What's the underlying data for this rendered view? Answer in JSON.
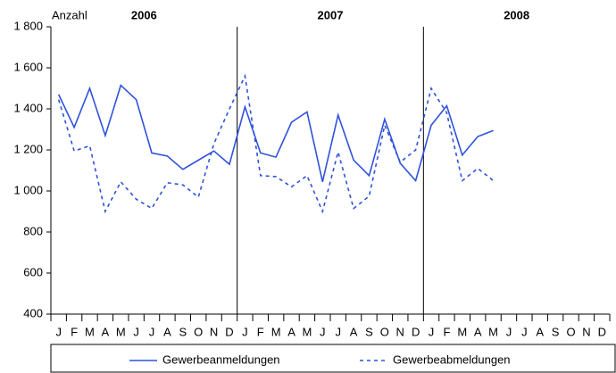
{
  "chart_data": {
    "type": "line",
    "y_label": "Anzahl",
    "annotations": [
      "2006",
      "2007",
      "2008"
    ],
    "categories": [
      "J",
      "F",
      "M",
      "A",
      "M",
      "J",
      "J",
      "A",
      "S",
      "O",
      "N",
      "D",
      "J",
      "F",
      "M",
      "A",
      "M",
      "J",
      "J",
      "A",
      "S",
      "O",
      "N",
      "D",
      "J",
      "F",
      "M",
      "A",
      "M",
      "J",
      "J",
      "A",
      "S",
      "O",
      "N",
      "D"
    ],
    "series": [
      {
        "name": "Gewerbeanmeldungen",
        "color": "#2f52dc",
        "dash": false,
        "values": [
          1470,
          1310,
          1500,
          1270,
          1515,
          1445,
          1185,
          1170,
          1105,
          1150,
          1195,
          1130,
          1410,
          1185,
          1165,
          1335,
          1385,
          1045,
          1370,
          1150,
          1075,
          1350,
          1135,
          1050,
          1320,
          1415,
          1175,
          1265,
          1295,
          null,
          null,
          null,
          null,
          null,
          null,
          null
        ]
      },
      {
        "name": "Gewerbeabmeldungen",
        "color": "#2f52dc",
        "dash": true,
        "values": [
          1445,
          1195,
          1220,
          900,
          1045,
          960,
          915,
          1040,
          1030,
          970,
          1230,
          1400,
          1560,
          1075,
          1070,
          1020,
          1075,
          900,
          1190,
          915,
          975,
          1320,
          1140,
          1200,
          1500,
          1380,
          1050,
          1110,
          1050,
          null,
          null,
          null,
          null,
          null,
          null,
          null
        ]
      }
    ],
    "ylim": [
      400,
      1800
    ],
    "yticks": [
      {
        "value": 400,
        "label": "400"
      },
      600,
      800,
      {
        "value": 1000,
        "label": "1 000"
      },
      {
        "value": 1200,
        "label": "1 200"
      },
      {
        "value": 1400,
        "label": "1 400"
      },
      {
        "value": 1600,
        "label": "1 600"
      },
      {
        "value": 1800,
        "label": "1 800"
      }
    ]
  }
}
